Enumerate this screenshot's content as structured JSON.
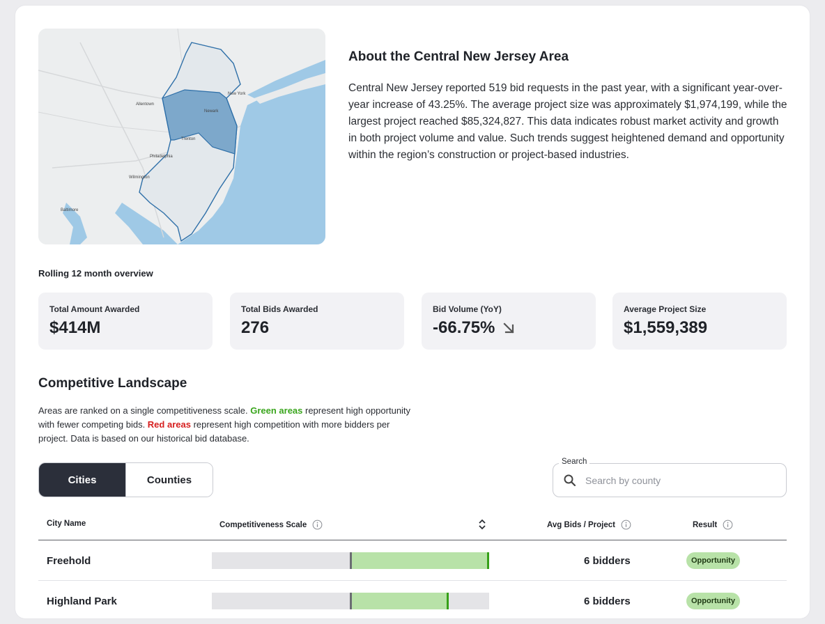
{
  "about": {
    "title": "About the Central New Jersey Area",
    "body": "Central New Jersey reported 519 bid requests in the past year, with a significant year-over-year increase of 43.25%. The average project size was approximately $1,974,199, while the largest project reached $85,324,827. This data indicates robust market activity and growth in both project volume and value. Such trends suggest heightened demand and opportunity within the region’s construction or project-based industries."
  },
  "map": {
    "labels": [
      "New York",
      "Newark",
      "Philadelphia",
      "Allentown",
      "Wilmington",
      "Baltimore",
      "Trenton"
    ],
    "water_color": "#9fc9e6",
    "region_color": "#5b93c0"
  },
  "overview": {
    "heading": "Rolling 12 month overview",
    "stats": [
      {
        "label": "Total Amount Awarded",
        "value": "$414M"
      },
      {
        "label": "Total Bids Awarded",
        "value": "276"
      },
      {
        "label": "Bid Volume (YoY)",
        "value": "-66.75%",
        "icon": "arrow-down-right-icon"
      },
      {
        "label": "Average Project Size",
        "value": "$1,559,389"
      }
    ]
  },
  "competitive": {
    "title": "Competitive Landscape",
    "desc_1": "Areas are ranked on a single competitiveness scale. ",
    "green_text": "Green areas",
    "desc_2": " represent high opportunity with fewer competing bids. ",
    "red_text": "Red areas",
    "desc_3": " represent high competition with more bidders per project. Data is based on our historical bid database.",
    "green_color": "#3aa51d",
    "red_color": "#d61f1f"
  },
  "tabs": [
    {
      "label": "Cities",
      "active": true
    },
    {
      "label": "Counties",
      "active": false
    }
  ],
  "search": {
    "label": "Search",
    "placeholder": "Search by county",
    "value": ""
  },
  "table": {
    "headers": {
      "name": "City Name",
      "scale": "Competitiveness Scale",
      "avg": "Avg Bids / Project",
      "result": "Result"
    },
    "rows": [
      {
        "name": "Freehold",
        "scale_value": 1.0,
        "bidders": "6 bidders",
        "result": "Opportunity"
      },
      {
        "name": "Highland Park",
        "scale_value": 0.7,
        "bidders": "6 bidders",
        "result": "Opportunity"
      }
    ]
  }
}
